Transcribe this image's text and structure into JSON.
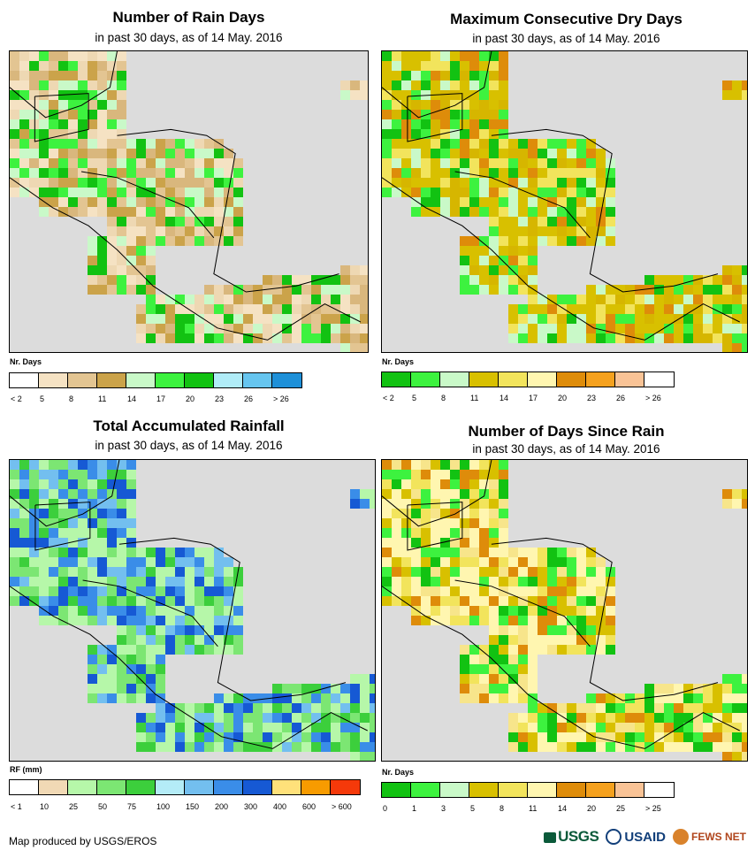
{
  "panels": [
    {
      "title": "Number of Rain Days",
      "subtitle": "in past 30 days, as of 14 May. 2016",
      "legend_label": "Nr. Days",
      "legend_colors": [
        "#ffffff",
        "#f5e2c3",
        "#e3c592",
        "#cba34a",
        "#c9f9c8",
        "#3df23f",
        "#12c212",
        "#b0ecf7",
        "#66c5ef",
        "#1e90d8"
      ],
      "legend_ticks": [
        "< 2",
        "5",
        "8",
        "11",
        "14",
        "17",
        "20",
        "23",
        "26",
        "> 26"
      ],
      "palette": [
        "#eed8b3",
        "#e3c592",
        "#d9b77d",
        "#f5e2c3",
        "#3df23f",
        "#12c212",
        "#c9f9c8",
        "#cba34a"
      ]
    },
    {
      "title": "Maximum Consecutive Dry Days",
      "subtitle": "in past 30 days, as of 14 May. 2016",
      "legend_label": "Nr. Days",
      "legend_colors": [
        "#12c212",
        "#3df23f",
        "#c9f9c8",
        "#d8c000",
        "#f2e45c",
        "#fff6b0",
        "#de8c0a",
        "#f5a11e",
        "#f9c396",
        "#ffffff"
      ],
      "legend_ticks": [
        "< 2",
        "5",
        "8",
        "11",
        "14",
        "17",
        "20",
        "23",
        "26",
        "> 26"
      ],
      "palette": [
        "#d8c000",
        "#d6b600",
        "#c9f9c8",
        "#f2e45c",
        "#3df23f",
        "#de8c0a",
        "#12c212",
        "#d8c000"
      ]
    },
    {
      "title": "Total Accumulated Rainfall",
      "subtitle": "in past 30 days, as of 14 May. 2016",
      "legend_label": "RF (mm)",
      "legend_colors": [
        "#ffffff",
        "#f1d9b5",
        "#b6f7a9",
        "#7ce673",
        "#3ccf3c",
        "#b4ecf7",
        "#73bfef",
        "#3a8de8",
        "#1659d4",
        "#ffe17a",
        "#f79b00",
        "#f5390a"
      ],
      "legend_ticks": [
        "< 1",
        "10",
        "25",
        "50",
        "75",
        "100",
        "150",
        "200",
        "300",
        "400",
        "600",
        "> 600"
      ],
      "palette": [
        "#7ce673",
        "#b6f7a9",
        "#3ccf3c",
        "#73bfef",
        "#3a8de8",
        "#7ce673",
        "#b6f7a9",
        "#1659d4"
      ]
    },
    {
      "title": "Number of Days Since Rain",
      "subtitle": "in past 30 days, as of 14 May. 2016",
      "legend_label": "Nr. Days",
      "legend_colors": [
        "#12c212",
        "#3df23f",
        "#c9f9c8",
        "#d8c000",
        "#f2e45c",
        "#fff6b0",
        "#de8c0a",
        "#f5a11e",
        "#f9c396",
        "#ffffff"
      ],
      "legend_ticks": [
        "0",
        "1",
        "3",
        "5",
        "8",
        "11",
        "14",
        "20",
        "25",
        "> 25"
      ],
      "palette": [
        "#f7e58b",
        "#fff6b0",
        "#f2e45c",
        "#12c212",
        "#fff6b0",
        "#3df23f",
        "#d8c000",
        "#de8c0a"
      ]
    }
  ],
  "footer": {
    "credit": "Map produced by USGS/EROS"
  },
  "logos": {
    "usgs": "USGS",
    "usaid": "USAID",
    "fews": "FEWS NET"
  }
}
